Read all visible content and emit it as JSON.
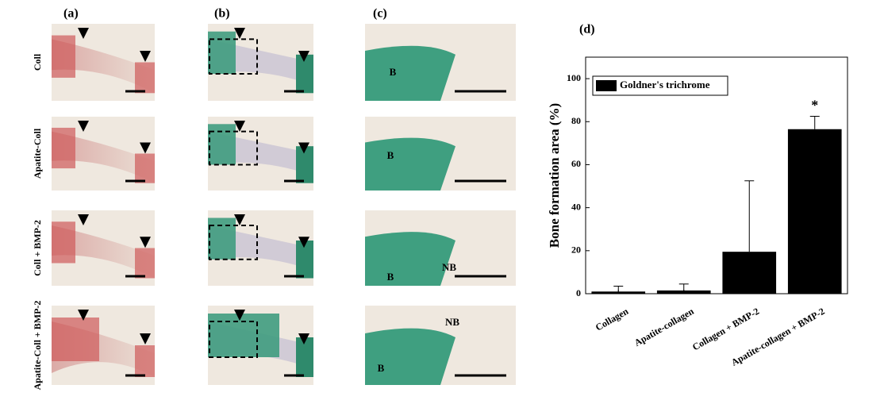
{
  "panel_labels": [
    "(a)",
    "(b)",
    "(c)",
    "(d)"
  ],
  "row_labels": [
    "Coll",
    "Apatite-Coll",
    "Coll + BMP-2",
    "Apatite-Coll + BMP-2"
  ],
  "image_labels": [
    [
      "B"
    ],
    [
      "B"
    ],
    [
      "NB",
      "B"
    ],
    [
      "NB",
      "B"
    ]
  ],
  "chart_data": {
    "type": "bar",
    "ylabel": "Bone formation area (%)",
    "categories": [
      "Collagen",
      "Apatite-collagen",
      "Collagen + BMP-2",
      "Apatite-collagen + BMP-2"
    ],
    "series": [
      {
        "name": "Goldner's trichrome",
        "color": "#000000",
        "values": [
          1,
          1.5,
          19.5,
          76.5
        ],
        "errors": [
          2.5,
          3,
          33,
          6
        ]
      }
    ],
    "ylim": [
      0,
      110
    ],
    "yticks": [
      0,
      20,
      40,
      60,
      80,
      100
    ],
    "legend": "upper left",
    "annotations": [
      {
        "category": 3,
        "text": "*"
      }
    ]
  }
}
